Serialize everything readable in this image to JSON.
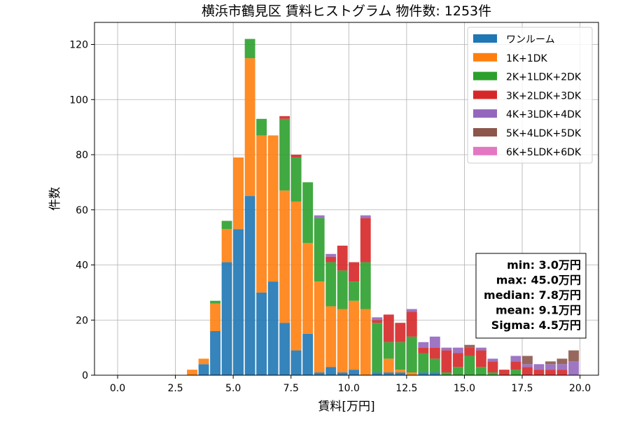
{
  "chart_data": {
    "type": "bar",
    "stacked": true,
    "title": "横浜市鶴見区 賃料ヒストグラム  物件数: 1253件",
    "xlabel": "賃料[万円]",
    "ylabel": "件数",
    "xlim": [
      -1.0,
      20.8
    ],
    "ylim": [
      0,
      128
    ],
    "xticks": [
      "0.0",
      "2.5",
      "5.0",
      "7.5",
      "10.0",
      "12.5",
      "15.0",
      "17.5",
      "20.0"
    ],
    "yticks": [
      "0",
      "20",
      "40",
      "60",
      "80",
      "100",
      "120"
    ],
    "grid": true,
    "legend_position": "top-right",
    "bin_width": 0.5,
    "x": [
      3.0,
      3.5,
      4.0,
      4.5,
      5.0,
      5.5,
      6.0,
      6.5,
      7.0,
      7.5,
      8.0,
      8.5,
      9.0,
      9.5,
      10.0,
      10.5,
      11.0,
      11.5,
      12.0,
      12.5,
      13.0,
      13.5,
      14.0,
      14.5,
      15.0,
      15.5,
      16.0,
      16.5,
      17.0,
      17.5,
      18.0,
      18.5,
      19.0,
      19.5
    ],
    "series": [
      {
        "name": "ワンルーム",
        "color": "#1f77b4",
        "values": [
          0,
          4,
          16,
          41,
          53,
          65,
          30,
          34,
          19,
          9,
          15,
          1,
          3,
          1,
          2,
          0,
          1,
          1,
          1,
          0,
          1,
          1,
          0,
          0,
          0,
          0,
          0,
          0,
          0,
          0,
          0,
          0,
          0,
          0
        ]
      },
      {
        "name": "1K+1DK",
        "color": "#ff7f0e",
        "values": [
          2,
          2,
          10,
          12,
          26,
          50,
          57,
          53,
          48,
          54,
          33,
          33,
          22,
          23,
          25,
          24,
          0,
          5,
          1,
          1,
          0,
          0,
          0,
          0,
          0,
          0,
          0,
          0,
          0,
          0,
          0,
          0,
          0,
          0
        ]
      },
      {
        "name": "2K+1LDK+2DK",
        "color": "#2ca02c",
        "values": [
          0,
          0,
          1,
          3,
          0,
          7,
          6,
          0,
          26,
          16,
          22,
          23,
          16,
          14,
          7,
          17,
          18,
          6,
          10,
          13,
          7,
          5,
          1,
          3,
          7,
          3,
          1,
          0,
          2,
          0,
          0,
          0,
          0,
          0
        ]
      },
      {
        "name": "3K+2LDK+3DK",
        "color": "#d62728",
        "values": [
          0,
          0,
          0,
          0,
          0,
          0,
          0,
          0,
          1,
          1,
          0,
          0,
          2,
          9,
          7,
          16,
          1,
          10,
          7,
          9,
          2,
          4,
          8,
          5,
          3,
          6,
          4,
          2,
          3,
          3,
          2,
          2,
          2,
          0
        ]
      },
      {
        "name": "4K+3LDK+4DK",
        "color": "#9467bd",
        "values": [
          0,
          0,
          0,
          0,
          0,
          0,
          0,
          0,
          0,
          0,
          0,
          1,
          1,
          0,
          0,
          1,
          1,
          0,
          0,
          1,
          2,
          4,
          1,
          2,
          0,
          1,
          1,
          0,
          2,
          1,
          2,
          2,
          2,
          5
        ]
      },
      {
        "name": "5K+4LDK+5DK",
        "color": "#8c564b",
        "values": [
          0,
          0,
          0,
          0,
          0,
          0,
          0,
          0,
          0,
          0,
          0,
          0,
          0,
          0,
          0,
          0,
          0,
          0,
          0,
          0,
          0,
          0,
          0,
          0,
          1,
          0,
          0,
          0,
          0,
          3,
          0,
          1,
          2,
          4
        ]
      },
      {
        "name": "6K+5LDK+6DK",
        "color": "#e377c2",
        "values": [
          0,
          0,
          0,
          0,
          0,
          0,
          0,
          0,
          0,
          0,
          0,
          0,
          0,
          0,
          0,
          0,
          0,
          0,
          0,
          0,
          0,
          0,
          0,
          0,
          0,
          0,
          0,
          0,
          0,
          0,
          0,
          0,
          0,
          0
        ]
      }
    ],
    "annotation_lines": [
      "min: 3.0万円",
      "max: 45.0万円",
      "median: 7.8万円",
      "mean: 9.1万円",
      "Sigma: 4.5万円"
    ]
  }
}
